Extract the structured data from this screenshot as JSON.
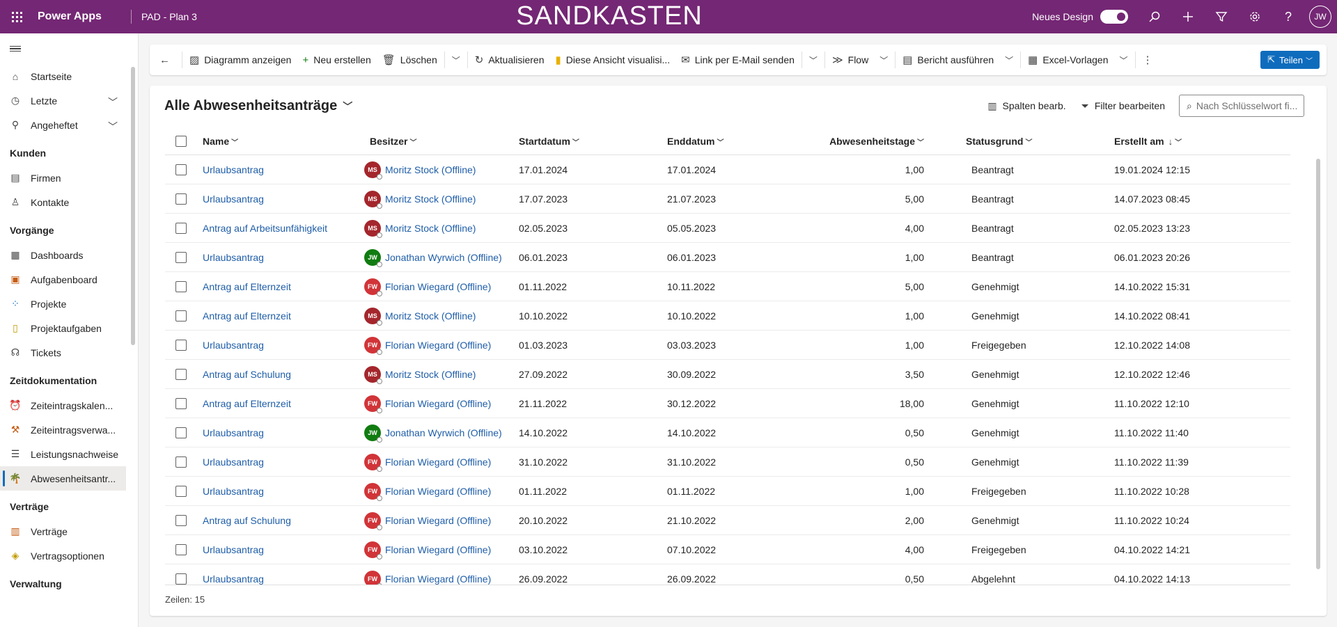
{
  "topbar": {
    "app_name": "Power Apps",
    "env_name": "PAD - Plan 3",
    "banner": "SANDKASTEN",
    "new_design_label": "Neues Design",
    "new_design_on": true,
    "user_initials": "JW"
  },
  "sidebar": {
    "items_top": [
      {
        "label": "Startseite",
        "icon": "home-icon"
      },
      {
        "label": "Letzte",
        "icon": "clock-icon"
      },
      {
        "label": "Angeheftet",
        "icon": "pin-icon"
      }
    ],
    "groups": [
      {
        "title": "Kunden",
        "items": [
          {
            "label": "Firmen",
            "icon": "building-icon"
          },
          {
            "label": "Kontakte",
            "icon": "person-icon"
          }
        ]
      },
      {
        "title": "Vorgänge",
        "items": [
          {
            "label": "Dashboards",
            "icon": "dashboard-icon"
          },
          {
            "label": "Aufgabenboard",
            "icon": "taskboard-icon"
          },
          {
            "label": "Projekte",
            "icon": "projects-icon"
          },
          {
            "label": "Projektaufgaben",
            "icon": "clipboard-icon"
          },
          {
            "label": "Tickets",
            "icon": "headset-icon"
          }
        ]
      },
      {
        "title": "Zeitdokumentation",
        "items": [
          {
            "label": "Zeiteintragskalen...",
            "icon": "alarm-icon"
          },
          {
            "label": "Zeiteintragsverwa...",
            "icon": "tools-icon"
          },
          {
            "label": "Leistungsnachweise",
            "icon": "list-icon"
          },
          {
            "label": "Abwesenheitsantr...",
            "icon": "palm-tree-icon",
            "selected": true
          }
        ]
      },
      {
        "title": "Verträge",
        "items": [
          {
            "label": "Verträge",
            "icon": "contract-icon"
          },
          {
            "label": "Vertragsoptionen",
            "icon": "tag-icon"
          }
        ]
      },
      {
        "title": "Verwaltung",
        "items": []
      }
    ]
  },
  "commandbar": {
    "show_chart": "Diagramm anzeigen",
    "new": "Neu erstellen",
    "delete": "Löschen",
    "refresh": "Aktualisieren",
    "visualize": "Diese Ansicht visualisi...",
    "email_link": "Link per E-Mail senden",
    "flow": "Flow",
    "run_report": "Bericht ausführen",
    "excel_templates": "Excel-Vorlagen",
    "share": "Teilen"
  },
  "view": {
    "title": "Alle Abwesenheitsanträge",
    "edit_columns": "Spalten bearb.",
    "edit_filters": "Filter bearbeiten",
    "search_placeholder": "Nach Schlüsselwort fi...",
    "footer": "Zeilen: 15"
  },
  "columns": {
    "name": "Name",
    "owner": "Besitzer",
    "start": "Startdatum",
    "end": "Enddatum",
    "days": "Abwesenheitstage",
    "status": "Statusgrund",
    "created": "Erstellt am"
  },
  "avatar_colors": {
    "MS": "#a4262c",
    "JW": "#107c10",
    "FW": "#d13438"
  },
  "rows": [
    {
      "name": "Urlaubsantrag",
      "owner_initials": "MS",
      "owner": "Moritz Stock (Offline)",
      "start": "17.01.2024",
      "end": "17.01.2024",
      "days": "1,00",
      "status": "Beantragt",
      "created": "19.01.2024 12:15"
    },
    {
      "name": "Urlaubsantrag",
      "owner_initials": "MS",
      "owner": "Moritz Stock (Offline)",
      "start": "17.07.2023",
      "end": "21.07.2023",
      "days": "5,00",
      "status": "Beantragt",
      "created": "14.07.2023 08:45"
    },
    {
      "name": "Antrag auf Arbeitsunfähigkeit",
      "owner_initials": "MS",
      "owner": "Moritz Stock (Offline)",
      "start": "02.05.2023",
      "end": "05.05.2023",
      "days": "4,00",
      "status": "Beantragt",
      "created": "02.05.2023 13:23"
    },
    {
      "name": "Urlaubsantrag",
      "owner_initials": "JW",
      "owner": "Jonathan Wyrwich (Offline)",
      "start": "06.01.2023",
      "end": "06.01.2023",
      "days": "1,00",
      "status": "Beantragt",
      "created": "06.01.2023 20:26"
    },
    {
      "name": "Antrag auf Elternzeit",
      "owner_initials": "FW",
      "owner": "Florian Wiegard (Offline)",
      "start": "01.11.2022",
      "end": "10.11.2022",
      "days": "5,00",
      "status": "Genehmigt",
      "created": "14.10.2022 15:31"
    },
    {
      "name": "Antrag auf Elternzeit",
      "owner_initials": "MS",
      "owner": "Moritz Stock (Offline)",
      "start": "10.10.2022",
      "end": "10.10.2022",
      "days": "1,00",
      "status": "Genehmigt",
      "created": "14.10.2022 08:41"
    },
    {
      "name": "Urlaubsantrag",
      "owner_initials": "FW",
      "owner": "Florian Wiegard (Offline)",
      "start": "01.03.2023",
      "end": "03.03.2023",
      "days": "1,00",
      "status": "Freigegeben",
      "created": "12.10.2022 14:08"
    },
    {
      "name": "Antrag auf Schulung",
      "owner_initials": "MS",
      "owner": "Moritz Stock (Offline)",
      "start": "27.09.2022",
      "end": "30.09.2022",
      "days": "3,50",
      "status": "Genehmigt",
      "created": "12.10.2022 12:46"
    },
    {
      "name": "Antrag auf Elternzeit",
      "owner_initials": "FW",
      "owner": "Florian Wiegard (Offline)",
      "start": "21.11.2022",
      "end": "30.12.2022",
      "days": "18,00",
      "status": "Genehmigt",
      "created": "11.10.2022 12:10"
    },
    {
      "name": "Urlaubsantrag",
      "owner_initials": "JW",
      "owner": "Jonathan Wyrwich (Offline)",
      "start": "14.10.2022",
      "end": "14.10.2022",
      "days": "0,50",
      "status": "Genehmigt",
      "created": "11.10.2022 11:40"
    },
    {
      "name": "Urlaubsantrag",
      "owner_initials": "FW",
      "owner": "Florian Wiegard (Offline)",
      "start": "31.10.2022",
      "end": "31.10.2022",
      "days": "0,50",
      "status": "Genehmigt",
      "created": "11.10.2022 11:39"
    },
    {
      "name": "Urlaubsantrag",
      "owner_initials": "FW",
      "owner": "Florian Wiegard (Offline)",
      "start": "01.11.2022",
      "end": "01.11.2022",
      "days": "1,00",
      "status": "Freigegeben",
      "created": "11.10.2022 10:28"
    },
    {
      "name": "Antrag auf Schulung",
      "owner_initials": "FW",
      "owner": "Florian Wiegard (Offline)",
      "start": "20.10.2022",
      "end": "21.10.2022",
      "days": "2,00",
      "status": "Genehmigt",
      "created": "11.10.2022 10:24"
    },
    {
      "name": "Urlaubsantrag",
      "owner_initials": "FW",
      "owner": "Florian Wiegard (Offline)",
      "start": "03.10.2022",
      "end": "07.10.2022",
      "days": "4,00",
      "status": "Freigegeben",
      "created": "04.10.2022 14:21"
    },
    {
      "name": "Urlaubsantrag",
      "owner_initials": "FW",
      "owner": "Florian Wiegard (Offline)",
      "start": "26.09.2022",
      "end": "26.09.2022",
      "days": "0,50",
      "status": "Abgelehnt",
      "created": "04.10.2022 14:13"
    }
  ]
}
